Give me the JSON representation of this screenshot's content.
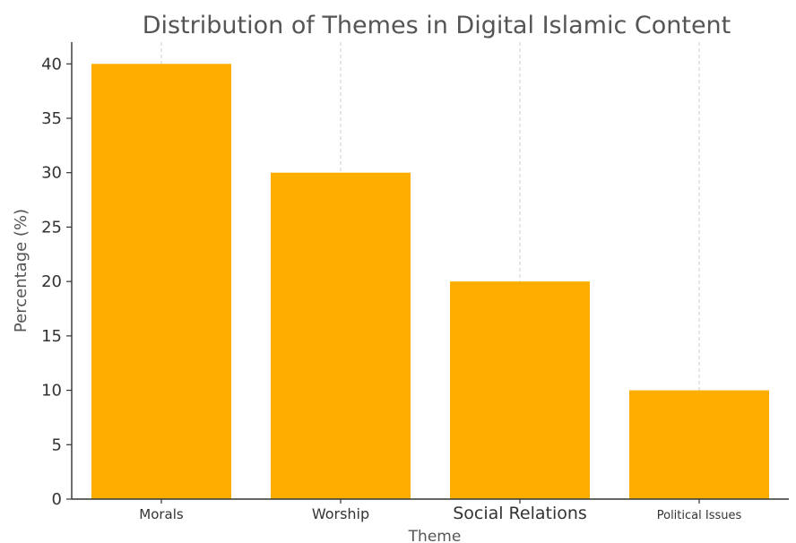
{
  "chart_data": {
    "type": "bar",
    "title": "Distribution of Themes in Digital Islamic Content",
    "xlabel": "Theme",
    "ylabel": "Percentage (%)",
    "categories": [
      "Morals",
      "Worship",
      "Social Relations",
      "Political Issues"
    ],
    "values": [
      40,
      30,
      20,
      10
    ],
    "ylim": [
      0,
      42
    ],
    "yticks": [
      0,
      5,
      10,
      15,
      20,
      25,
      30,
      35,
      40
    ],
    "bar_color": "#FFAE00",
    "grid": "vertical dashed",
    "legend": "none"
  }
}
